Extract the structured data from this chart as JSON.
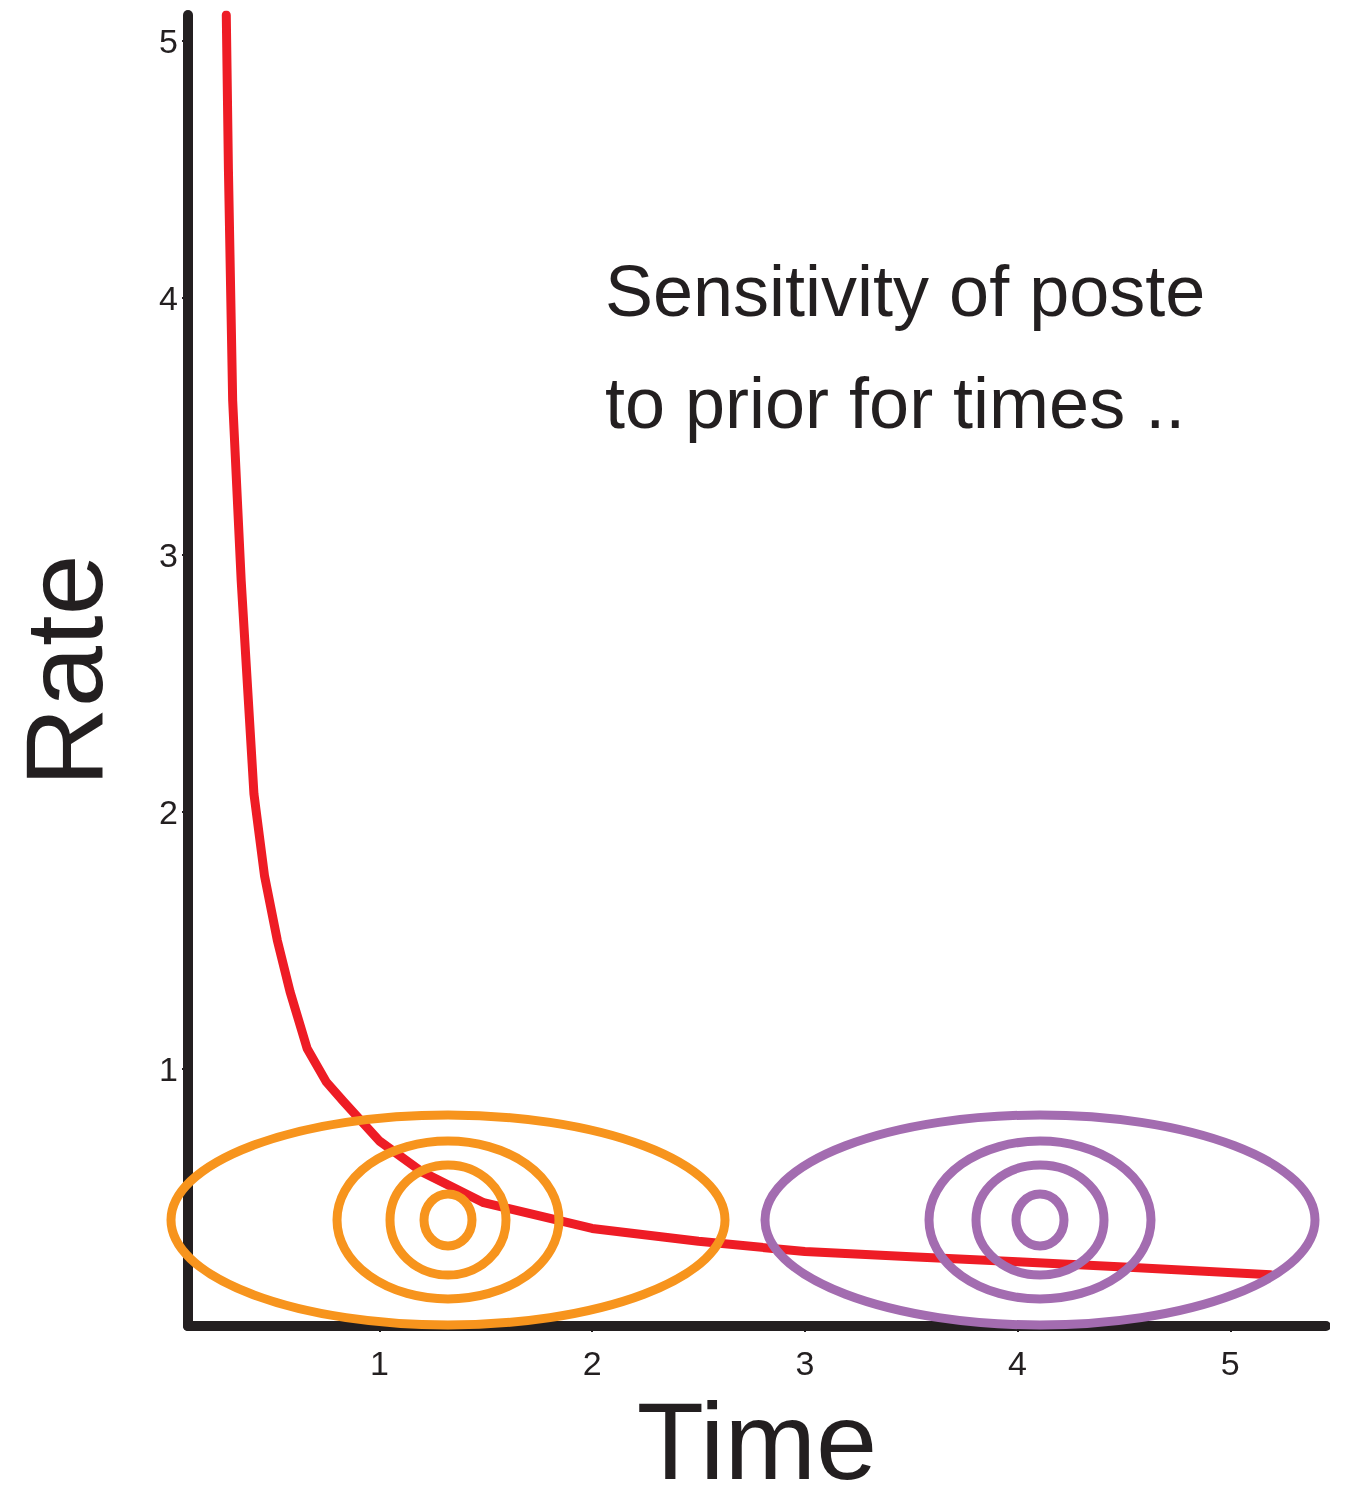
{
  "chart_data": {
    "type": "line",
    "title": "Sensitivity of poste\nto prior for times ..",
    "xlabel": "Time",
    "ylabel": "Rate",
    "xlim": [
      0.1,
      5.45
    ],
    "ylim": [
      0,
      5.1
    ],
    "xticks": [
      1,
      2,
      3,
      4,
      5
    ],
    "yticks": [
      1,
      2,
      3,
      4,
      5
    ],
    "line_style": "solid",
    "series": [
      {
        "color": "#ee1c25",
        "x": [
          0.28,
          0.29,
          0.31,
          0.35,
          0.41,
          0.46,
          0.52,
          0.58,
          0.66,
          0.75,
          0.83,
          1.0,
          1.2,
          1.49,
          2.0,
          2.5,
          3.0,
          3.5,
          4.0,
          4.5,
          5.19
        ],
        "values": [
          5.1,
          4.5,
          3.6,
          2.9,
          2.07,
          1.75,
          1.5,
          1.3,
          1.08,
          0.95,
          0.875,
          0.72,
          0.6,
          0.48,
          0.38,
          0.33,
          0.29,
          0.27,
          0.25,
          0.23,
          0.2
        ]
      }
    ]
  }
}
